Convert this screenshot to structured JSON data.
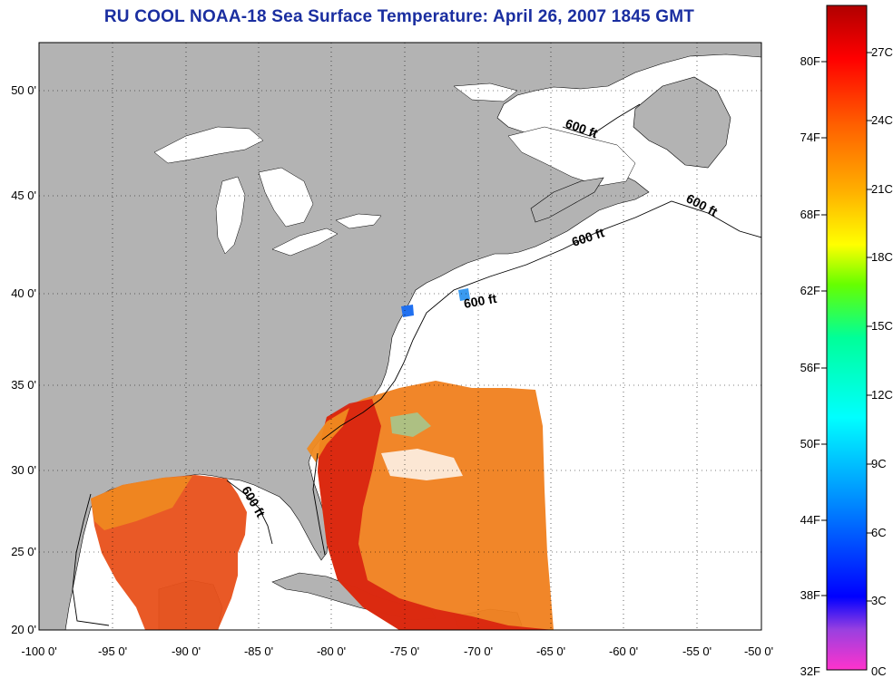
{
  "title": "RU COOL  NOAA-18  Sea Surface Temperature:  April 26, 2007 1845 GMT",
  "latitude_labels": [
    "50 0'",
    "45 0'",
    "40 0'",
    "35 0'",
    "30 0'",
    "25 0'",
    "20 0'"
  ],
  "longitude_labels": [
    "-100 0'",
    "-95 0'",
    "-90 0'",
    "-85 0'",
    "-80 0'",
    "-75 0'",
    "-70 0'",
    "-65 0'",
    "-60 0'",
    "-55 0'",
    "-50 0'"
  ],
  "isobath_label": "600 ft",
  "colorbar": {
    "fahrenheit_labels": [
      "80F",
      "74F",
      "68F",
      "62F",
      "56F",
      "50F",
      "44F",
      "38F",
      "32F"
    ],
    "celsius_labels": [
      "27C",
      "24C",
      "21C",
      "18C",
      "15C",
      "12C",
      "9C",
      "6C",
      "3C",
      "0C"
    ],
    "colors": [
      "#ff33cc",
      "#8040e0",
      "#0000ff",
      "#0088ff",
      "#00ffff",
      "#00ff99",
      "#66ff00",
      "#ffff00",
      "#ffb000",
      "#ff6000",
      "#ff0000",
      "#b00000"
    ]
  },
  "colors": {
    "land": "#b3b3b3",
    "ocean_nodata": "#ffffff",
    "sst_warm": "#e8501a",
    "sst_orange": "#f08a20",
    "title": "#1a2ea0"
  }
}
